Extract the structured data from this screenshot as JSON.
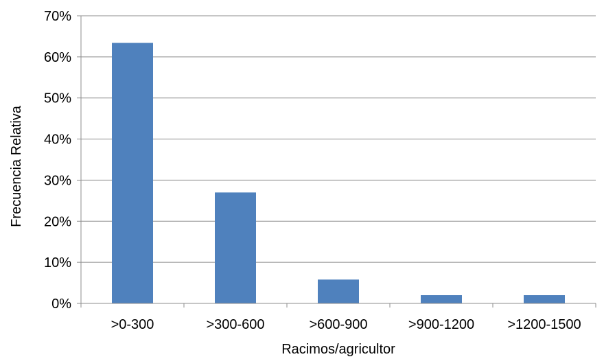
{
  "chart_data": {
    "type": "bar",
    "title": "",
    "xlabel": "Racimos/agricultor",
    "ylabel": "Frecuencia Relativa",
    "categories": [
      ">0-300",
      ">300-600",
      ">600-900",
      ">900-1200",
      ">1200-1500"
    ],
    "values": [
      63.4,
      27.0,
      5.8,
      2.0,
      2.0
    ],
    "ylim": [
      0,
      70
    ],
    "yticks": [
      0,
      10,
      20,
      30,
      40,
      50,
      60,
      70
    ],
    "ytick_labels": [
      "0%",
      "10%",
      "20%",
      "30%",
      "40%",
      "50%",
      "60%",
      "70%"
    ],
    "grid": true,
    "legend": "none",
    "colors": {
      "bar": "#4f81bd",
      "grid": "#8c8c8c",
      "axis": "#8c8c8c"
    }
  }
}
